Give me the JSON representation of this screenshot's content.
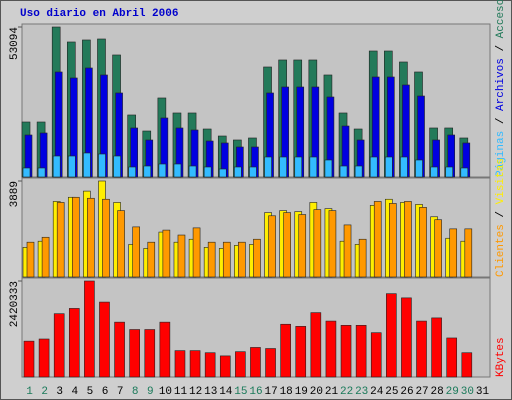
{
  "chart_data": [
    {
      "type": "bar",
      "title": "Uso diario en Abril 2006",
      "ylim": [
        0,
        53094
      ],
      "yticks": [
        53094
      ],
      "legend_separator": " / ",
      "series": [
        {
          "name": "Accesos",
          "color": "#237a5a",
          "values": [
            19470,
            19470,
            53094,
            47790,
            48500,
            48850,
            43190,
            21950,
            16280,
            27970,
            22660,
            22660,
            16990,
            14510,
            13100,
            13810,
            38940,
            41420,
            41420,
            41420,
            36110,
            22660,
            16990,
            44600,
            44600,
            40710,
            37170,
            17350,
            17350,
            13810,
            0
          ]
        },
        {
          "name": "Archivos",
          "color": "#0000e0",
          "values": [
            14870,
            15580,
            37170,
            35050,
            38590,
            36110,
            29740,
            17350,
            13100,
            20890,
            17350,
            16640,
            12740,
            12040,
            10620,
            10620,
            29740,
            31860,
            31860,
            31860,
            28320,
            18050,
            13100,
            35400,
            35400,
            32570,
            28670,
            13100,
            14870,
            12040,
            0
          ]
        },
        {
          "name": "Páginas",
          "color": "#33bbff",
          "values": [
            3190,
            3190,
            7430,
            7430,
            8500,
            8140,
            7430,
            3540,
            3890,
            4600,
            4600,
            3890,
            3540,
            2830,
            3540,
            3540,
            7080,
            7080,
            7080,
            7080,
            6020,
            3890,
            3890,
            7080,
            7080,
            7080,
            6020,
            3540,
            3540,
            3190,
            0
          ]
        }
      ]
    },
    {
      "type": "bar",
      "ylim": [
        0,
        3889
      ],
      "yticks": [
        3889
      ],
      "legend_separator": " / ",
      "series": [
        {
          "name": "Visitas",
          "color": "#ffee00",
          "values": [
            1200,
            1450,
            3060,
            3230,
            3480,
            3889,
            3020,
            1320,
            1160,
            1820,
            1410,
            1530,
            1200,
            1160,
            1280,
            1320,
            2610,
            2690,
            2650,
            3020,
            2770,
            1450,
            1320,
            2900,
            3150,
            3020,
            2940,
            2440,
            1570,
            1450,
            0
          ]
        },
        {
          "name": "Clientes",
          "color": "#ff9900",
          "values": [
            1410,
            1610,
            3020,
            3230,
            3190,
            3150,
            2690,
            2030,
            1410,
            1900,
            1700,
            1990,
            1410,
            1410,
            1410,
            1530,
            2480,
            2610,
            2530,
            2730,
            2690,
            2110,
            1530,
            3060,
            2980,
            3060,
            2820,
            2320,
            1950,
            1950,
            0
          ]
        }
      ]
    },
    {
      "type": "bar",
      "ylim": [
        0,
        2420333
      ],
      "yticks": [
        2420333
      ],
      "categories": [
        "1",
        "2",
        "3",
        "4",
        "5",
        "6",
        "7",
        "8",
        "9",
        "10",
        "11",
        "12",
        "13",
        "14",
        "15",
        "16",
        "17",
        "18",
        "19",
        "20",
        "21",
        "22",
        "23",
        "24",
        "25",
        "26",
        "27",
        "28",
        "29",
        "30",
        "31"
      ],
      "category_colors": [
        "#1a7a5a",
        "#1a7a5a",
        "#000000",
        "#000000",
        "#000000",
        "#000000",
        "#000000",
        "#1a7a5a",
        "#1a7a5a",
        "#000000",
        "#000000",
        "#000000",
        "#000000",
        "#000000",
        "#1a7a5a",
        "#1a7a5a",
        "#000000",
        "#000000",
        "#000000",
        "#000000",
        "#000000",
        "#1a7a5a",
        "#1a7a5a",
        "#000000",
        "#000000",
        "#000000",
        "#000000",
        "#000000",
        "#1a7a5a",
        "#1a7a5a",
        "#000000"
      ],
      "series": [
        {
          "name": "KBytes",
          "color": "#ff0000",
          "values": [
            904000,
            958000,
            1596000,
            1729000,
            2420333,
            1889000,
            1383000,
            1197000,
            1197000,
            1383000,
            665000,
            665000,
            612000,
            532000,
            638000,
            745000,
            718000,
            1330000,
            1277000,
            1623000,
            1410000,
            1303000,
            1303000,
            1117000,
            2101000,
            1995000,
            1410000,
            1490000,
            984000,
            612000,
            0
          ]
        }
      ]
    }
  ]
}
